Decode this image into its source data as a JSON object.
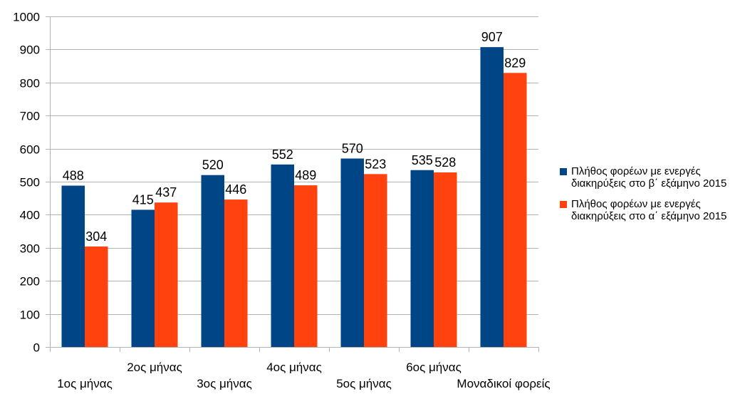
{
  "chart_data": {
    "type": "bar",
    "title": "",
    "xlabel": "",
    "ylabel": "",
    "ylim": [
      0,
      1000
    ],
    "yticks": [
      0,
      100,
      200,
      300,
      400,
      500,
      600,
      700,
      800,
      900,
      1000
    ],
    "grid": true,
    "legend_position": "right",
    "categories": [
      "1ος μήνας",
      "2ος μήνας",
      "3ος μήνας",
      "4ος μήνας",
      "5ος μήνας",
      "6ος μήνας",
      "Μοναδικοί φορείς"
    ],
    "series": [
      {
        "name": "Πλήθος φορέων με ενεργές διακηρύξεις στο β΄ εξάμηνο 2015",
        "color": "#004586",
        "values": [
          488,
          415,
          520,
          552,
          570,
          535,
          907
        ]
      },
      {
        "name": "Πλήθος φορέων με ενεργές διακηρύξεις στο α΄ εξάμηνο 2015",
        "color": "#ff420e",
        "values": [
          304,
          437,
          446,
          489,
          523,
          528,
          829
        ]
      }
    ]
  }
}
